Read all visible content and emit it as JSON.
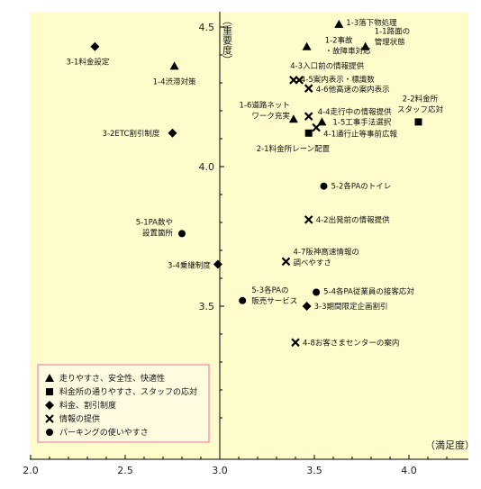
{
  "chart_data": {
    "type": "scatter",
    "title": "",
    "xlabel": "（満足度）",
    "ylabel": "（重要度）",
    "xlim": [
      2.0,
      4.3
    ],
    "ylim": [
      3.05,
      4.55
    ],
    "x_ticks": [
      "2.0",
      "2.5",
      "3.0",
      "3.5",
      "4.0"
    ],
    "y_ticks": [
      "3.5",
      "4.0",
      "4.5"
    ],
    "background_color": "#fffccc",
    "legend_position": "bottom-left",
    "legend_border_color": "#f2a0b0",
    "series": [
      {
        "name": "走りやすさ、安全性、快適性",
        "marker": "triangle",
        "points": [
          {
            "label": "1-3落下物処理",
            "x": 3.63,
            "y": 4.51
          },
          {
            "label": "1-2事故\n・故障車対応",
            "x": 3.46,
            "y": 4.43
          },
          {
            "label": "1-1路面の\n管理状態",
            "x": 3.77,
            "y": 4.43
          },
          {
            "label": "1-4渋滞対策",
            "x": 2.76,
            "y": 4.36
          },
          {
            "label": "1-6道路ネット\nワーク充実",
            "x": 3.39,
            "y": 4.17
          },
          {
            "label": "1-5工事手法選択",
            "x": 3.54,
            "y": 4.16
          }
        ]
      },
      {
        "name": "料金所の通りやすさ、スタッフの応対",
        "marker": "square",
        "points": [
          {
            "label": "2-2料金所\nスタッフ応対",
            "x": 4.05,
            "y": 4.16
          },
          {
            "label": "2-1料金所レーン配置",
            "x": 3.47,
            "y": 4.12
          }
        ]
      },
      {
        "name": "料金、割引制度",
        "marker": "diamond",
        "points": [
          {
            "label": "3-1料金設定",
            "x": 2.34,
            "y": 4.43
          },
          {
            "label": "3-2ETC割引制度",
            "x": 2.75,
            "y": 4.12
          },
          {
            "label": "3-4乗継制度",
            "x": 2.99,
            "y": 3.65
          },
          {
            "label": "3-3期間限定企画割引",
            "x": 3.46,
            "y": 3.5
          }
        ]
      },
      {
        "name": "情報の提供",
        "marker": "cross",
        "points": [
          {
            "label": "4-3入口前の情報提供",
            "x": 3.42,
            "y": 4.31
          },
          {
            "label": "4-5案内表示・標識数",
            "x": 3.39,
            "y": 4.31
          },
          {
            "label": "4-6他高速の案内表示",
            "x": 3.47,
            "y": 4.28
          },
          {
            "label": "4-4走行中の情報提供",
            "x": 3.47,
            "y": 4.18
          },
          {
            "label": "4-1通行止等事前広報",
            "x": 3.51,
            "y": 4.14
          },
          {
            "label": "4-2出発前の情報提供",
            "x": 3.47,
            "y": 3.81
          },
          {
            "label": "4-7阪神高速情報の\n調べやすさ",
            "x": 3.35,
            "y": 3.66
          },
          {
            "label": "4-8お客さまセンターの案内",
            "x": 3.4,
            "y": 3.37
          }
        ]
      },
      {
        "name": "パーキングの使いやすさ",
        "marker": "circle",
        "points": [
          {
            "label": "5-2各PAのトイレ",
            "x": 3.55,
            "y": 3.93
          },
          {
            "label": "5-1PA数や\n設置箇所",
            "x": 2.8,
            "y": 3.76
          },
          {
            "label": "5-4各PA従業員の接客応対",
            "x": 3.51,
            "y": 3.55
          },
          {
            "label": "5-3各PAの\n販売サービス",
            "x": 3.12,
            "y": 3.52
          }
        ]
      }
    ]
  }
}
